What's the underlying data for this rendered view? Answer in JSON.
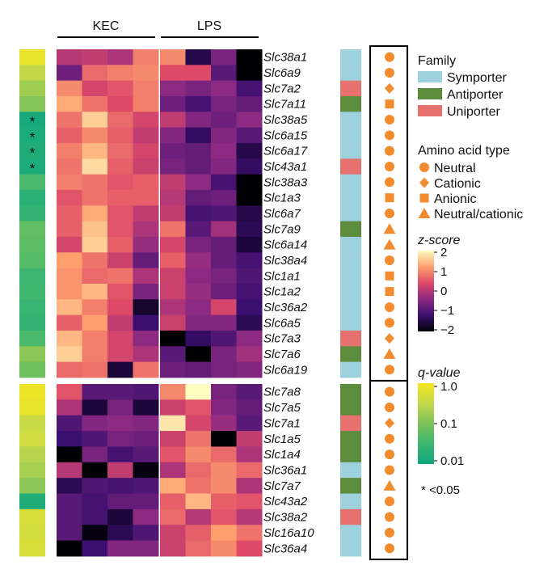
{
  "chart_data": {
    "type": "heatmap",
    "column_groups": [
      "KEC",
      "LPS"
    ],
    "replicates_per_group": 4,
    "colorscale": {
      "label": "z-score",
      "range": [
        -2,
        2
      ],
      "ticks": [
        "2",
        "1",
        "0",
        "−1",
        "−2"
      ],
      "stops": [
        "#000004",
        "#3b0f70",
        "#8c2981",
        "#de4968",
        "#fe9f6d",
        "#fcfdbf"
      ]
    },
    "qvalue_scale": {
      "label": "q-value",
      "ticks": [
        "1.0",
        "0.1",
        "0.01"
      ],
      "range_log10": [
        -2,
        0
      ],
      "stops": [
        "#0ea67f",
        "#3cb670",
        "#7cc35a",
        "#c4d84a",
        "#f6e71e"
      ],
      "significance_note": "* <0.05"
    },
    "family_legend": {
      "title": "Family",
      "items": [
        {
          "key": "S",
          "label": "Symporter",
          "color": "#9ed1de"
        },
        {
          "key": "A",
          "label": "Antiporter",
          "color": "#5e8c3d"
        },
        {
          "key": "U",
          "label": "Uniporter",
          "color": "#e7716f"
        }
      ]
    },
    "aa_legend": {
      "title": "Amino acid type",
      "color": "#f08c2d",
      "items": [
        {
          "key": "N",
          "label": "Neutral",
          "shape": "circle"
        },
        {
          "key": "C",
          "label": "Cationic",
          "shape": "diamond"
        },
        {
          "key": "AN",
          "label": "Anionic",
          "shape": "square"
        },
        {
          "key": "NC",
          "label": "Neutral/cationic",
          "shape": "triangle"
        }
      ]
    },
    "blocks": [
      {
        "genes": [
          "Slc38a1",
          "Slc6a9",
          "Slc7a2",
          "Slc7a11",
          "Slc38a5",
          "Slc6a15",
          "Slc6a17",
          "Slc43a1",
          "Slc38a3",
          "Slc1a3",
          "Slc6a7",
          "Slc7a9",
          "Slc6a14",
          "Slc38a4",
          "Slc1a1",
          "Slc1a2",
          "Slc36a2",
          "Slc6a5",
          "Slc7a3",
          "Slc7a6",
          "Slc6a19"
        ],
        "family": [
          "S",
          "S",
          "U",
          "A",
          "S",
          "S",
          "S",
          "U",
          "S",
          "S",
          "S",
          "A",
          "S",
          "S",
          "S",
          "S",
          "S",
          "S",
          "U",
          "A",
          "S"
        ],
        "aa_type": [
          "N",
          "N",
          "C",
          "AN",
          "N",
          "N",
          "N",
          "N",
          "N",
          "AN",
          "N",
          "NC",
          "NC",
          "N",
          "AN",
          "AN",
          "N",
          "N",
          "C",
          "NC",
          "N"
        ],
        "q_log10": [
          -0.15,
          -0.5,
          -0.75,
          -0.95,
          -1.9,
          -1.85,
          -1.8,
          -1.85,
          -1.4,
          -1.7,
          -1.6,
          -1.2,
          -1.25,
          -1.3,
          -1.5,
          -1.45,
          -1.55,
          -1.6,
          -1.4,
          -0.9,
          -1.1
        ],
        "significant": [
          false,
          false,
          false,
          false,
          true,
          true,
          true,
          true,
          false,
          false,
          false,
          false,
          false,
          false,
          false,
          false,
          false,
          false,
          false,
          false,
          false
        ],
        "z": [
          [
            0.0,
            0.1,
            -0.1,
            0.9,
            1.0,
            -1.5,
            -0.6,
            -2.0
          ],
          [
            -0.7,
            0.7,
            0.9,
            1.0,
            0.4,
            0.4,
            -0.9,
            -2.5
          ],
          [
            1.0,
            0.3,
            0.5,
            0.9,
            -0.4,
            -0.6,
            -0.4,
            -1.1
          ],
          [
            1.3,
            0.8,
            0.4,
            0.9,
            -0.7,
            -1.1,
            -0.6,
            -0.8
          ],
          [
            0.8,
            1.6,
            0.7,
            0.3,
            0.1,
            -0.5,
            -0.7,
            -0.4
          ],
          [
            0.6,
            1.0,
            0.6,
            0.1,
            -0.5,
            -1.3,
            -0.5,
            -0.9
          ],
          [
            0.9,
            1.4,
            0.7,
            0.3,
            -0.7,
            -0.8,
            -0.4,
            -1.5
          ],
          [
            0.8,
            1.7,
            0.6,
            0.2,
            -0.6,
            -0.8,
            -0.5,
            -1.3
          ],
          [
            0.9,
            0.8,
            0.5,
            0.6,
            0.1,
            -0.4,
            -1.1,
            -2.5
          ],
          [
            0.5,
            0.8,
            0.6,
            0.6,
            0.0,
            -0.8,
            -0.7,
            -2.0
          ],
          [
            0.6,
            1.3,
            0.5,
            0.1,
            0.1,
            -1.1,
            -1.0,
            -1.5
          ],
          [
            0.6,
            1.5,
            0.5,
            -0.1,
            0.8,
            -0.9,
            -0.2,
            -1.4
          ],
          [
            0.3,
            1.6,
            0.6,
            -0.3,
            0.3,
            -0.6,
            -0.8,
            -1.6
          ],
          [
            1.2,
            0.8,
            0.2,
            -0.8,
            0.6,
            -0.3,
            -0.8,
            -1.1
          ],
          [
            1.1,
            0.7,
            0.8,
            -0.1,
            0.2,
            -0.4,
            -0.6,
            -1.0
          ],
          [
            1.1,
            1.4,
            0.5,
            -0.6,
            0.2,
            -0.3,
            -0.7,
            -1.1
          ],
          [
            1.4,
            0.9,
            0.4,
            -1.7,
            -0.1,
            -0.4,
            0.3,
            -1.2
          ],
          [
            0.6,
            1.2,
            0.1,
            -1.2,
            0.2,
            -0.5,
            -0.5,
            -1.4
          ],
          [
            1.4,
            0.9,
            0.3,
            -0.4,
            -2.0,
            -1.3,
            -1.0,
            -0.4
          ],
          [
            1.6,
            0.9,
            0.3,
            -0.1,
            -0.9,
            -2.0,
            -0.6,
            -0.2
          ],
          [
            0.7,
            0.8,
            -1.6,
            0.8,
            -0.7,
            -0.8,
            -0.6,
            -0.5
          ]
        ]
      },
      {
        "genes": [
          "Slc7a8",
          "Slc7a5",
          "Slc7a1",
          "Slc1a5",
          "Slc1a4",
          "Slc36a1",
          "Slc7a7",
          "Slc43a2",
          "Slc38a2",
          "Slc16a10",
          "Slc36a4"
        ],
        "family": [
          "A",
          "A",
          "U",
          "A",
          "A",
          "S",
          "A",
          "S",
          "U",
          "S",
          "S"
        ],
        "aa_type": [
          "N",
          "N",
          "C",
          "N",
          "N",
          "N",
          "NC",
          "N",
          "N",
          "N",
          "N"
        ],
        "q_log10": [
          -0.1,
          -0.15,
          -0.45,
          -0.4,
          -0.6,
          -0.7,
          -0.9,
          -1.8,
          -0.3,
          -0.35,
          -0.3
        ],
        "significant": [
          false,
          false,
          false,
          false,
          false,
          false,
          false,
          false,
          false,
          false,
          false
        ],
        "z": [
          [
            0.5,
            -0.9,
            -0.9,
            -1.0,
            1.0,
            2.0,
            -0.6,
            -0.9
          ],
          [
            -0.1,
            -1.6,
            -0.6,
            -1.6,
            0.2,
            0.5,
            -0.5,
            -0.8
          ],
          [
            -1.0,
            -0.5,
            -0.4,
            -0.5,
            1.8,
            0.3,
            -0.3,
            -0.9
          ],
          [
            -1.2,
            -1.0,
            -0.6,
            -0.7,
            0.2,
            0.8,
            -2.5,
            0.1
          ],
          [
            -2.3,
            -0.6,
            -1.1,
            -0.9,
            0.5,
            1.0,
            0.7,
            -0.1
          ],
          [
            0.0,
            -2.3,
            0.1,
            -1.9,
            -0.1,
            0.7,
            1.0,
            0.7
          ],
          [
            -1.4,
            -1.0,
            -1.1,
            -1.0,
            1.3,
            0.8,
            1.0,
            -0.1
          ],
          [
            -0.9,
            -1.1,
            -0.8,
            -0.8,
            0.6,
            1.4,
            0.6,
            0.5
          ],
          [
            -0.9,
            -1.1,
            -1.6,
            -0.4,
            0.7,
            0.0,
            0.5,
            0.0
          ],
          [
            -0.9,
            -1.9,
            -1.4,
            -1.0,
            0.2,
            0.6,
            1.2,
            0.8
          ],
          [
            -2.4,
            -1.2,
            -0.5,
            -0.5,
            0.2,
            0.7,
            1.0,
            0.4
          ]
        ]
      }
    ]
  }
}
